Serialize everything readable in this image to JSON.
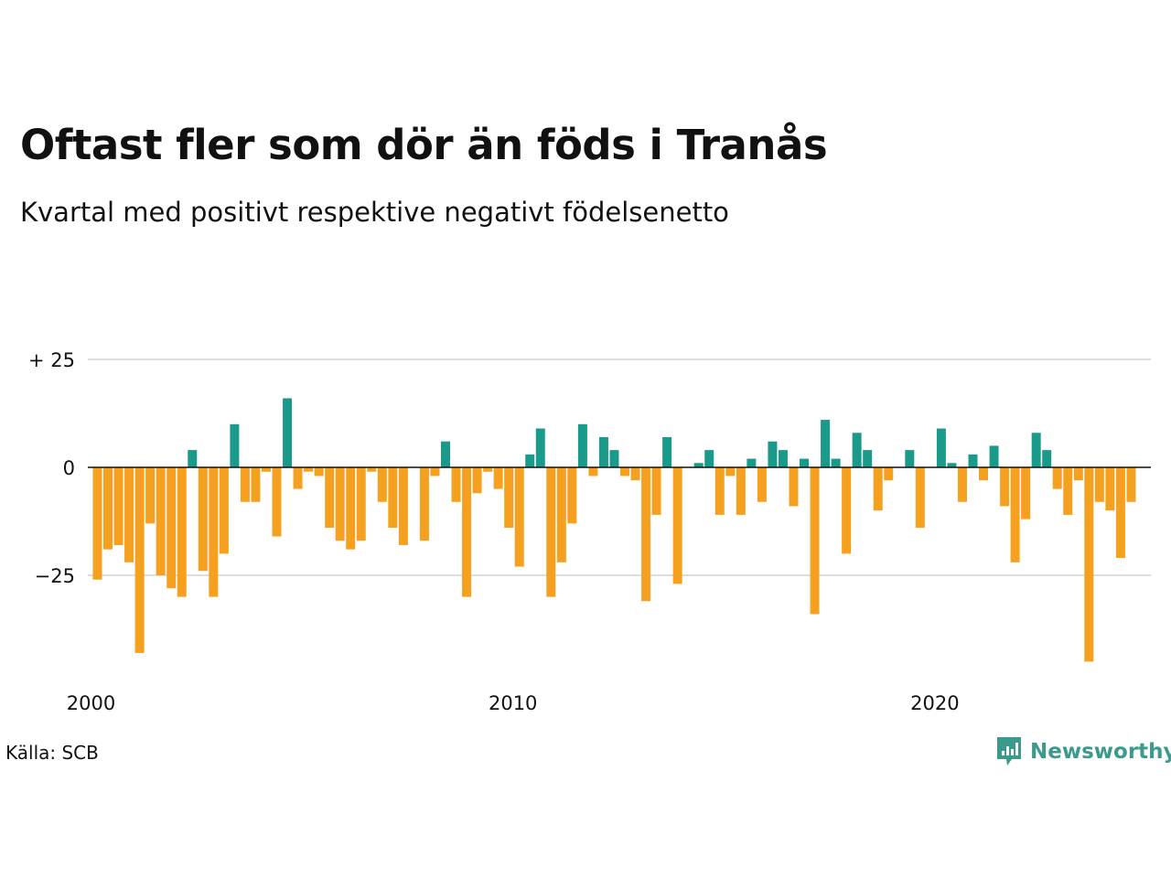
{
  "title": "Oftast fler som dör än föds i Tranås",
  "subtitle": "Kvartal med positivt respektive negativt födelsenetto",
  "source": "Källa: SCB",
  "brand": "Newsworthy",
  "colors": {
    "positive": "#1a9a8a",
    "negative": "#f5a01e",
    "grid": "#dddddd",
    "zero": "#111111",
    "brand": "#3c9a8c"
  },
  "chart_data": {
    "type": "bar",
    "title": "Oftast fler som dör än föds i Tranås",
    "subtitle": "Kvartal med positivt respektive negativt födelsenetto",
    "ylim": [
      -47,
      27
    ],
    "yticks": [
      25,
      0,
      -25
    ],
    "ytick_labels": [
      "+ 25",
      "0",
      "−25"
    ],
    "xticks": [
      2000,
      2010,
      2020
    ],
    "grid": true,
    "start": "2000 Q1",
    "values": [
      -26,
      -19,
      -18,
      -22,
      -43,
      -13,
      -25,
      -28,
      -30,
      4,
      -24,
      -30,
      -20,
      10,
      -8,
      -8,
      -1,
      -16,
      16,
      -5,
      -1,
      -2,
      -14,
      -17,
      -19,
      -17,
      -1,
      -8,
      -14,
      -18,
      0,
      -17,
      -2,
      6,
      -8,
      -30,
      -6,
      -1,
      -5,
      -14,
      -23,
      3,
      9,
      -30,
      -22,
      -13,
      10,
      -2,
      7,
      4,
      -2,
      -3,
      -31,
      -11,
      7,
      -27,
      0,
      1,
      4,
      -11,
      -2,
      -11,
      2,
      -8,
      6,
      4,
      -9,
      2,
      -34,
      11,
      2,
      -20,
      8,
      4,
      -10,
      -3,
      0,
      4,
      -14,
      0,
      9,
      1,
      -8,
      3,
      -3,
      5,
      -9,
      -22,
      -12,
      8,
      4,
      -5,
      -11,
      -3,
      -45,
      -8,
      -10,
      -21,
      -8
    ]
  }
}
